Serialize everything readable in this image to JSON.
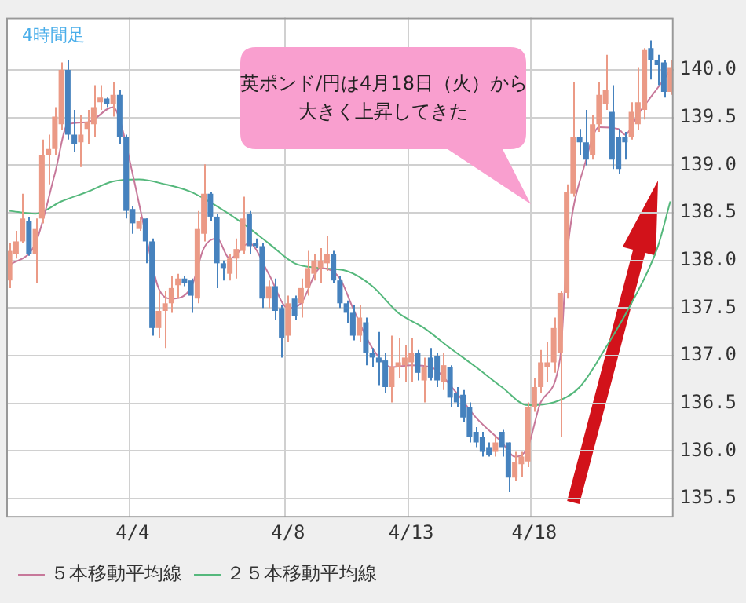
{
  "chart_data": {
    "type": "candlestick",
    "title": "4時間足",
    "categories": [
      null,
      null,
      null,
      null,
      null,
      null,
      null,
      null,
      null,
      null,
      null,
      null,
      null,
      null,
      null,
      null,
      null,
      null,
      null,
      "4/4",
      null,
      null,
      null,
      null,
      null,
      null,
      null,
      null,
      null,
      null,
      null,
      null,
      null,
      null,
      null,
      null,
      null,
      null,
      null,
      null,
      null,
      null,
      null,
      "4/8",
      null,
      null,
      null,
      null,
      null,
      null,
      null,
      null,
      null,
      null,
      null,
      null,
      null,
      null,
      null,
      null,
      null,
      null,
      "4/13",
      null,
      null,
      null,
      null,
      null,
      null,
      null,
      null,
      null,
      null,
      null,
      null,
      null,
      null,
      null,
      null,
      null,
      null,
      "4/18",
      null,
      null,
      null,
      null,
      null,
      null,
      null,
      null,
      null,
      null,
      null,
      null,
      null,
      null,
      null,
      null,
      null,
      null,
      null,
      null,
      null
    ],
    "series": [
      {
        "ohlc": [
          [
            137.79,
            138.18,
            137.71,
            138.1
          ],
          [
            138.07,
            138.31,
            138.02,
            138.2
          ],
          [
            138.2,
            138.7,
            138.18,
            138.44
          ],
          [
            138.41,
            138.46,
            138.05,
            138.07
          ],
          [
            138.07,
            138.44,
            137.76,
            138.33
          ],
          [
            138.44,
            139.27,
            138.39,
            139.11
          ],
          [
            139.11,
            139.32,
            138.8,
            139.17
          ],
          [
            139.17,
            139.61,
            139.11,
            139.51
          ],
          [
            139.43,
            140.08,
            139.37,
            140.0
          ],
          [
            140.0,
            140.1,
            139.27,
            139.32
          ],
          [
            139.32,
            139.58,
            139.14,
            139.22
          ],
          [
            139.24,
            139.53,
            138.98,
            139.32
          ],
          [
            139.38,
            139.58,
            139.22,
            139.45
          ],
          [
            139.43,
            139.84,
            139.3,
            139.61
          ],
          [
            139.66,
            139.84,
            139.58,
            139.71
          ],
          [
            139.7,
            139.71,
            139.61,
            139.64
          ],
          [
            139.64,
            139.87,
            139.51,
            139.74
          ],
          [
            139.74,
            139.79,
            139.22,
            139.3
          ],
          [
            139.3,
            139.32,
            138.44,
            138.52
          ],
          [
            138.54,
            138.57,
            138.28,
            138.39
          ],
          [
            138.33,
            138.46,
            138.31,
            138.41
          ],
          [
            138.44,
            138.44,
            137.97,
            138.2
          ],
          [
            138.2,
            138.23,
            137.21,
            137.29
          ],
          [
            137.29,
            137.68,
            137.19,
            137.47
          ],
          [
            137.47,
            137.68,
            137.08,
            137.55
          ],
          [
            137.55,
            137.84,
            137.45,
            137.71
          ],
          [
            137.74,
            137.86,
            137.6,
            137.81
          ],
          [
            137.81,
            137.84,
            137.73,
            137.76
          ],
          [
            137.79,
            137.81,
            137.45,
            137.63
          ],
          [
            137.6,
            138.52,
            137.55,
            138.33
          ],
          [
            138.28,
            139.01,
            138.2,
            138.7
          ],
          [
            138.7,
            138.72,
            138.41,
            138.46
          ],
          [
            138.46,
            138.49,
            137.71,
            137.97
          ],
          [
            137.97,
            138.0,
            137.79,
            137.92
          ],
          [
            137.86,
            138.07,
            137.79,
            138.02
          ],
          [
            138.02,
            138.23,
            137.81,
            138.12
          ],
          [
            138.1,
            138.67,
            138.07,
            138.44
          ],
          [
            138.49,
            138.52,
            138.07,
            138.15
          ],
          [
            138.18,
            138.23,
            138.13,
            138.15
          ],
          [
            138.15,
            138.18,
            137.5,
            137.6
          ],
          [
            137.6,
            137.79,
            137.5,
            137.73
          ],
          [
            137.73,
            137.81,
            137.37,
            137.47
          ],
          [
            137.5,
            137.53,
            136.98,
            137.19
          ],
          [
            137.21,
            137.63,
            137.14,
            137.55
          ],
          [
            137.6,
            137.63,
            137.37,
            137.42
          ],
          [
            137.55,
            137.81,
            137.4,
            137.71
          ],
          [
            137.71,
            138.1,
            137.63,
            137.92
          ],
          [
            137.86,
            138.07,
            137.79,
            138.0
          ],
          [
            137.92,
            138.13,
            137.76,
            138.0
          ],
          [
            137.97,
            138.26,
            137.89,
            138.07
          ],
          [
            138.07,
            138.1,
            137.76,
            137.79
          ],
          [
            137.79,
            137.84,
            137.5,
            137.55
          ],
          [
            137.55,
            137.58,
            137.34,
            137.45
          ],
          [
            137.45,
            137.53,
            137.16,
            137.21
          ],
          [
            137.21,
            137.53,
            137.14,
            137.4
          ],
          [
            137.35,
            137.4,
            136.9,
            137.03
          ],
          [
            137.03,
            137.08,
            136.88,
            136.98
          ],
          [
            136.98,
            137.25,
            136.69,
            136.93
          ],
          [
            136.95,
            137.03,
            136.61,
            136.67
          ],
          [
            136.67,
            137.21,
            136.51,
            136.88
          ],
          [
            136.88,
            137.19,
            136.77,
            136.93
          ],
          [
            136.9,
            137.11,
            136.72,
            136.98
          ],
          [
            136.93,
            137.19,
            136.72,
            137.03
          ],
          [
            137.03,
            137.06,
            136.74,
            136.82
          ],
          [
            136.74,
            136.98,
            136.51,
            136.88
          ],
          [
            136.98,
            137.08,
            136.74,
            136.77
          ],
          [
            137.0,
            137.03,
            136.67,
            136.74
          ],
          [
            136.72,
            137.03,
            136.64,
            136.9
          ],
          [
            136.88,
            136.9,
            136.46,
            136.56
          ],
          [
            136.61,
            136.67,
            136.46,
            136.51
          ],
          [
            136.59,
            136.64,
            136.3,
            136.35
          ],
          [
            136.46,
            136.51,
            136.09,
            136.15
          ],
          [
            136.2,
            136.25,
            136.04,
            136.09
          ],
          [
            136.15,
            136.2,
            135.94,
            135.99
          ],
          [
            136.04,
            136.09,
            135.94,
            135.96
          ],
          [
            135.99,
            136.15,
            135.94,
            136.09
          ],
          [
            136.2,
            136.22,
            135.94,
            136.04
          ],
          [
            136.09,
            136.09,
            135.57,
            135.72
          ],
          [
            135.72,
            135.99,
            135.68,
            135.88
          ],
          [
            135.86,
            135.99,
            135.73,
            135.94
          ],
          [
            135.89,
            136.51,
            135.83,
            136.46
          ],
          [
            136.46,
            136.77,
            136.41,
            136.67
          ],
          [
            136.67,
            137.06,
            136.61,
            136.93
          ],
          [
            136.88,
            137.14,
            136.72,
            136.93
          ],
          [
            136.93,
            137.4,
            136.82,
            137.29
          ],
          [
            137.03,
            137.68,
            136.15,
            137.66
          ],
          [
            137.66,
            138.8,
            137.6,
            138.72
          ],
          [
            138.7,
            139.87,
            138.67,
            139.3
          ],
          [
            139.3,
            139.38,
            139.11,
            139.24
          ],
          [
            139.24,
            139.58,
            139.0,
            139.06
          ],
          [
            139.11,
            139.53,
            139.06,
            139.43
          ],
          [
            139.43,
            139.87,
            139.35,
            139.74
          ],
          [
            139.64,
            140.16,
            139.58,
            139.79
          ],
          [
            139.56,
            139.84,
            138.96,
            139.06
          ],
          [
            139.3,
            139.38,
            138.91,
            138.96
          ],
          [
            139.3,
            139.35,
            139.06,
            139.24
          ],
          [
            139.3,
            139.66,
            139.27,
            139.56
          ],
          [
            139.43,
            140.03,
            139.37,
            139.66
          ],
          [
            139.58,
            140.23,
            139.48,
            140.21
          ],
          [
            140.23,
            140.31,
            139.9,
            140.1
          ],
          [
            140.1,
            140.16,
            139.84,
            140.05
          ],
          [
            140.08,
            140.1,
            139.71,
            139.77
          ],
          [
            139.77,
            140.1,
            139.74,
            140.03
          ]
        ],
        "colors": [
          "#eb9a86",
          "#eb9a86",
          "#eb9a86",
          "#4682be",
          "#eb9a86",
          "#eb9a86",
          "#eb9a86",
          "#eb9a86",
          "#eb9a86",
          "#4682be",
          "#4682be",
          "#eb9a86",
          "#eb9a86",
          "#eb9a86",
          "#eb9a86",
          "#4682be",
          "#eb9a86",
          "#4682be",
          "#4682be",
          "#4682be",
          "#eb9a86",
          "#4682be",
          "#4682be",
          "#eb9a86",
          "#eb9a86",
          "#eb9a86",
          "#eb9a86",
          "#4682be",
          "#4682be",
          "#eb9a86",
          "#eb9a86",
          "#4682be",
          "#4682be",
          "#4682be",
          "#eb9a86",
          "#eb9a86",
          "#eb9a86",
          "#4682be",
          "#4682be",
          "#4682be",
          "#eb9a86",
          "#4682be",
          "#4682be",
          "#eb9a86",
          "#4682be",
          "#eb9a86",
          "#eb9a86",
          "#eb9a86",
          "#eb9a86",
          "#eb9a86",
          "#4682be",
          "#4682be",
          "#4682be",
          "#4682be",
          "#eb9a86",
          "#4682be",
          "#4682be",
          "#4682be",
          "#4682be",
          "#eb9a86",
          "#eb9a86",
          "#eb9a86",
          "#eb9a86",
          "#4682be",
          "#eb9a86",
          "#4682be",
          "#4682be",
          "#eb9a86",
          "#4682be",
          "#4682be",
          "#4682be",
          "#4682be",
          "#4682be",
          "#4682be",
          "#4682be",
          "#eb9a86",
          "#4682be",
          "#4682be",
          "#eb9a86",
          "#eb9a86",
          "#eb9a86",
          "#eb9a86",
          "#eb9a86",
          "#eb9a86",
          "#eb9a86",
          "#eb9a86",
          "#eb9a86",
          "#eb9a86",
          "#4682be",
          "#4682be",
          "#eb9a86",
          "#eb9a86",
          "#eb9a86",
          "#4682be",
          "#4682be",
          "#4682be",
          "#eb9a86",
          "#eb9a86",
          "#eb9a86",
          "#4682be",
          "#4682be",
          "#4682be",
          "#eb9a86"
        ]
      },
      {
        "type": "line",
        "name": "５本移動平均線",
        "color": "#c7789a",
        "values": [
          137.95,
          null,
          null,
          null,
          138.18,
          null,
          null,
          138.91,
          null,
          139.43,
          null,
          null,
          139.45,
          null,
          null,
          null,
          139.61,
          139.48,
          null,
          138.91,
          null,
          138.28,
          null,
          137.71,
          null,
          137.6,
          null,
          null,
          137.71,
          null,
          138.13,
          null,
          138.23,
          null,
          138.02,
          null,
          null,
          138.18,
          null,
          null,
          137.86,
          null,
          null,
          137.5,
          null,
          137.55,
          null,
          null,
          137.92,
          null,
          null,
          137.81,
          null,
          137.5,
          null,
          null,
          137.08,
          null,
          null,
          136.88,
          null,
          null,
          136.9,
          null,
          null,
          136.88,
          null,
          null,
          null,
          136.61,
          null,
          null,
          136.35,
          null,
          null,
          null,
          136.09,
          null,
          135.94,
          null,
          136.04,
          null,
          136.51,
          null,
          null,
          136.98,
          138.02,
          null,
          null,
          139.06,
          null,
          139.4,
          null,
          null,
          139.38,
          139.32,
          null,
          139.53,
          null,
          null,
          null,
          139.9,
          140.0
        ]
      },
      {
        "type": "line",
        "name": "２５本移動平均線",
        "color": "#55b87c",
        "values": [
          138.52,
          null,
          null,
          null,
          138.49,
          null,
          null,
          null,
          138.62,
          null,
          null,
          null,
          138.72,
          null,
          null,
          null,
          138.83,
          null,
          null,
          null,
          138.85,
          null,
          null,
          null,
          138.8,
          null,
          null,
          null,
          138.72,
          null,
          null,
          null,
          138.57,
          null,
          null,
          null,
          138.39,
          null,
          null,
          null,
          138.18,
          null,
          null,
          null,
          137.97,
          null,
          null,
          null,
          137.92,
          null,
          null,
          null,
          137.89,
          null,
          null,
          null,
          137.73,
          null,
          null,
          null,
          137.45,
          null,
          null,
          null,
          137.29,
          null,
          null,
          null,
          137.08,
          null,
          null,
          null,
          136.88,
          null,
          null,
          null,
          136.67,
          null,
          null,
          null,
          136.48,
          null,
          null,
          null,
          136.51,
          null,
          null,
          null,
          136.67,
          null,
          null,
          null,
          137.08,
          null,
          null,
          null,
          137.55,
          null,
          null,
          null,
          138.13,
          null,
          138.62
        ]
      }
    ],
    "ylim": [
      135.3,
      140.55
    ],
    "yticks": [
      {
        "value": 135.5,
        "label": "135.5"
      },
      {
        "value": 136,
        "label": "136.0"
      },
      {
        "value": 136.5,
        "label": "136.5"
      },
      {
        "value": 137,
        "label": "137.0"
      },
      {
        "value": 137.5,
        "label": "137.5"
      },
      {
        "value": 138,
        "label": "138.0"
      },
      {
        "value": 138.5,
        "label": "138.5"
      },
      {
        "value": 139,
        "label": "139.0"
      },
      {
        "value": 139.5,
        "label": "139.5"
      },
      {
        "value": 140,
        "label": "140.0"
      }
    ],
    "grid": true,
    "legend": "bottom left",
    "annotations": [
      "英ポンド/円は4月18日（火）から",
      "大きく上昇してきた"
    ]
  }
}
